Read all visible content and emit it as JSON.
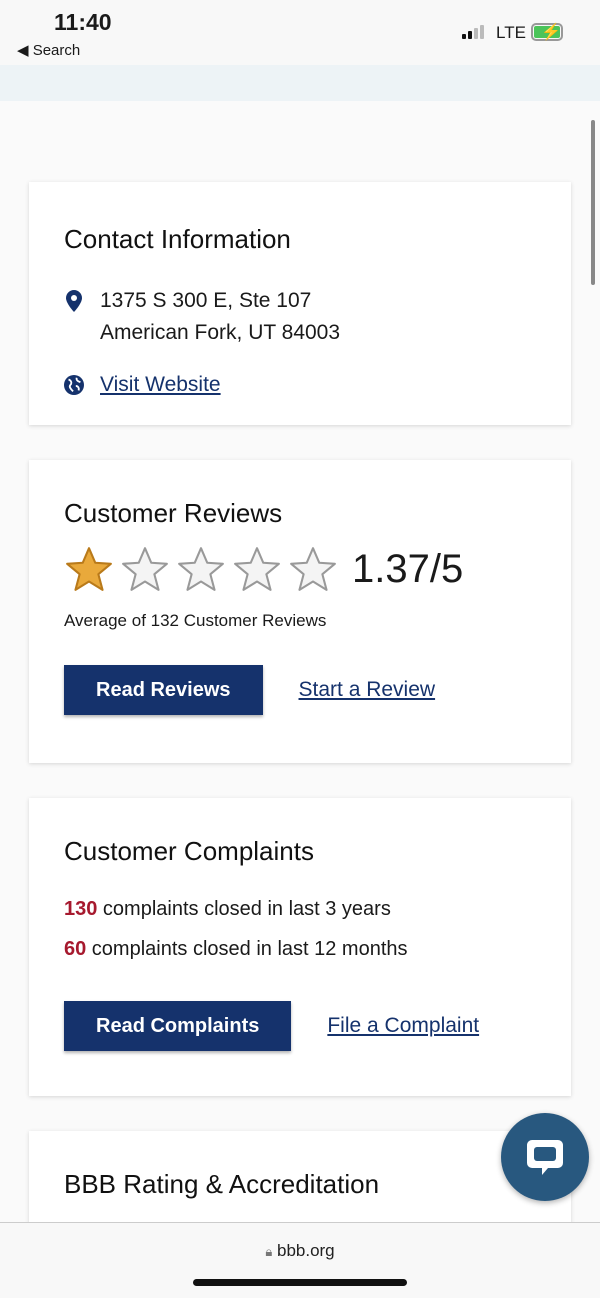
{
  "status_bar": {
    "time": "11:40",
    "back_label": "Search",
    "network": "LTE",
    "battery_charging": true
  },
  "contact": {
    "title": "Contact Information",
    "address_line1": "1375 S 300 E, Ste 107",
    "address_line2": "American Fork, UT 84003",
    "website_link": "Visit Website"
  },
  "reviews": {
    "title": "Customer Reviews",
    "rating": 1.37,
    "max": 5,
    "rating_text": "1.37/5",
    "summary": "Average of 132 Customer Reviews",
    "read_button": "Read Reviews",
    "start_link": "Start a Review",
    "star_color": "#e9a93b"
  },
  "complaints": {
    "title": "Customer Complaints",
    "lines": [
      {
        "count": "130",
        "text": " complaints closed in last 3 years"
      },
      {
        "count": "60",
        "text": " complaints closed in last 12 months"
      }
    ],
    "read_button": "Read Complaints",
    "file_link": "File a Complaint"
  },
  "rating_section": {
    "title": "BBB Rating & Accreditation"
  },
  "browser": {
    "url": "bbb.org"
  },
  "colors": {
    "brand_navy": "#15326c",
    "complaint_red": "#a6192e",
    "chat": "#28587f"
  }
}
